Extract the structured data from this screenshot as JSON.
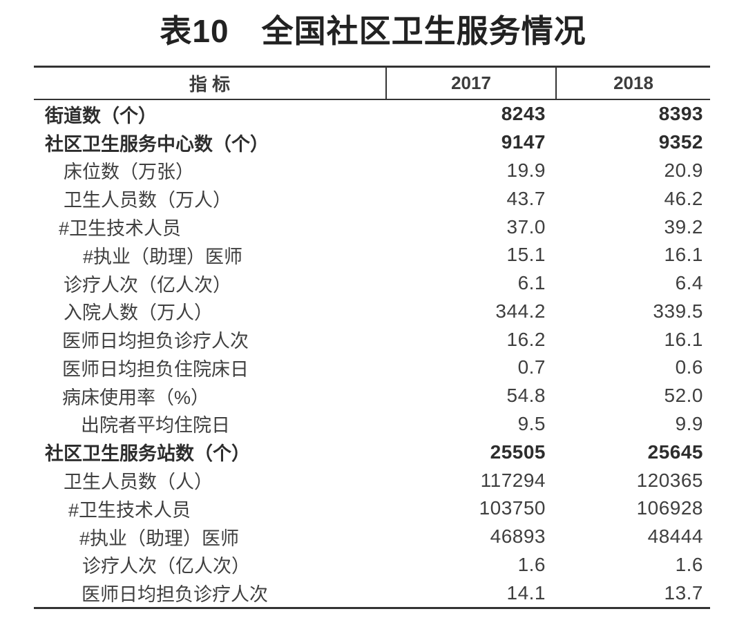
{
  "title": "表10　全国社区卫生服务情况",
  "table": {
    "header": {
      "indicator": "指 标",
      "year_2017": "2017",
      "year_2018": "2018"
    },
    "rows": [
      {
        "label": "街道数（个）",
        "indent": 16,
        "bold": true,
        "v2017": "8243",
        "v2018": "8393"
      },
      {
        "label": "社区卫生服务中心数（个）",
        "indent": 16,
        "bold": true,
        "v2017": "9147",
        "v2018": "9352"
      },
      {
        "label": "床位数（万张）",
        "indent": 43,
        "bold": false,
        "v2017": "19.9",
        "v2018": "20.9"
      },
      {
        "label": "卫生人员数（万人）",
        "indent": 43,
        "bold": false,
        "v2017": "43.7",
        "v2018": "46.2"
      },
      {
        "label": "#卫生技术人员",
        "indent": 36,
        "bold": false,
        "v2017": "37.0",
        "v2018": "39.2"
      },
      {
        "label": "#执业（助理）医师",
        "indent": 71,
        "bold": false,
        "v2017": "15.1",
        "v2018": "16.1"
      },
      {
        "label": "诊疗人次（亿人次）",
        "indent": 43,
        "bold": false,
        "v2017": "6.1",
        "v2018": "6.4"
      },
      {
        "label": "入院人数（万人）",
        "indent": 43,
        "bold": false,
        "v2017": "344.2",
        "v2018": "339.5"
      },
      {
        "label": "医师日均担负诊疗人次",
        "indent": 41,
        "bold": false,
        "v2017": "16.2",
        "v2018": "16.1"
      },
      {
        "label": "医师日均担负住院床日",
        "indent": 41,
        "bold": false,
        "v2017": "0.7",
        "v2018": "0.6"
      },
      {
        "label": "病床使用率（%）",
        "indent": 41,
        "bold": false,
        "v2017": "54.8",
        "v2018": "52.0"
      },
      {
        "label": "出院者平均住院日",
        "indent": 68,
        "bold": false,
        "v2017": "9.5",
        "v2018": "9.9"
      },
      {
        "label": "社区卫生服务站数（个）",
        "indent": 16,
        "bold": true,
        "v2017": "25505",
        "v2018": "25645"
      },
      {
        "label": "卫生人员数（人）",
        "indent": 43,
        "bold": false,
        "v2017": "117294",
        "v2018": "120365"
      },
      {
        "label": "#卫生技术人员",
        "indent": 50,
        "bold": false,
        "v2017": "103750",
        "v2018": "106928"
      },
      {
        "label": "#执业（助理）医师",
        "indent": 66,
        "bold": false,
        "v2017": "46893",
        "v2018": "48444"
      },
      {
        "label": "诊疗人次（亿人次）",
        "indent": 70,
        "bold": false,
        "v2017": "1.6",
        "v2018": "1.6"
      },
      {
        "label": "医师日均担负诊疗人次",
        "indent": 69,
        "bold": false,
        "v2017": "14.1",
        "v2018": "13.7"
      }
    ]
  },
  "chart_data": {
    "type": "table",
    "title": "表10　全国社区卫生服务情况",
    "columns": [
      "指标",
      "2017",
      "2018"
    ],
    "rows": [
      [
        "街道数（个）",
        "8243",
        "8393"
      ],
      [
        "社区卫生服务中心数（个）",
        "9147",
        "9352"
      ],
      [
        "床位数（万张）",
        "19.9",
        "20.9"
      ],
      [
        "卫生人员数（万人）",
        "43.7",
        "46.2"
      ],
      [
        "#卫生技术人员",
        "37.0",
        "39.2"
      ],
      [
        "#执业（助理）医师",
        "15.1",
        "16.1"
      ],
      [
        "诊疗人次（亿人次）",
        "6.1",
        "6.4"
      ],
      [
        "入院人数（万人）",
        "344.2",
        "339.5"
      ],
      [
        "医师日均担负诊疗人次",
        "16.2",
        "16.1"
      ],
      [
        "医师日均担负住院床日",
        "0.7",
        "0.6"
      ],
      [
        "病床使用率（%）",
        "54.8",
        "52.0"
      ],
      [
        "出院者平均住院日",
        "9.5",
        "9.9"
      ],
      [
        "社区卫生服务站数（个）",
        "25505",
        "25645"
      ],
      [
        "卫生人员数（人）",
        "117294",
        "120365"
      ],
      [
        "#卫生技术人员",
        "103750",
        "106928"
      ],
      [
        "#执业（助理）医师",
        "46893",
        "48444"
      ],
      [
        "诊疗人次（亿人次）",
        "1.6",
        "1.6"
      ],
      [
        "医师日均担负诊疗人次",
        "14.1",
        "13.7"
      ]
    ]
  },
  "colors": {
    "background": "#ffffff",
    "line": "#333333",
    "text": "#3f3f3f",
    "text_bold": "#2d2d2d",
    "title": "#222222"
  }
}
